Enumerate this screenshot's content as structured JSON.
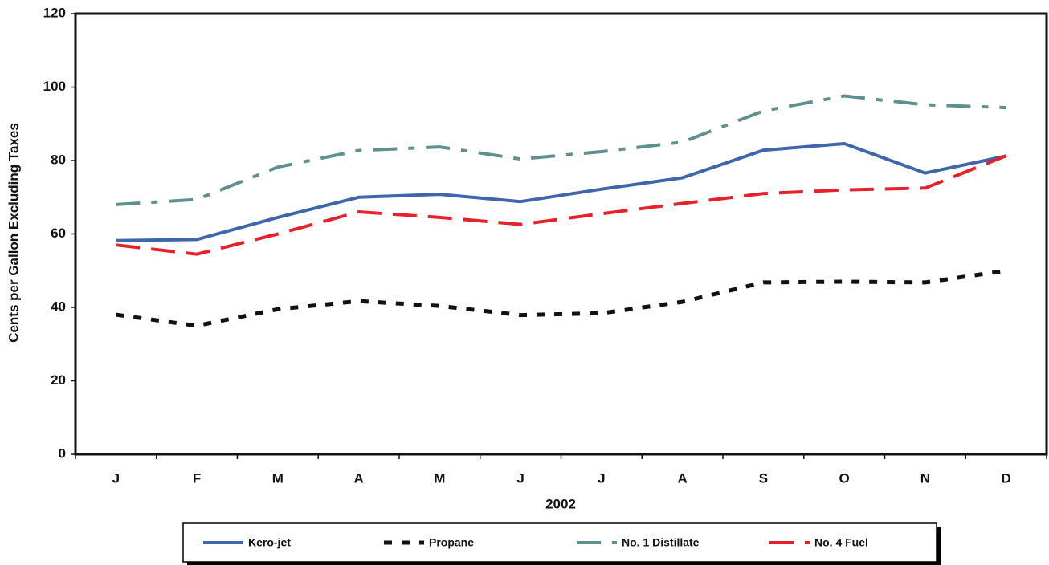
{
  "chart_data": {
    "type": "line",
    "y_label": "Cents per Gallon Excluding Taxes",
    "x_label": "2002",
    "categories": [
      "J",
      "F",
      "M",
      "A",
      "M",
      "J",
      "J",
      "A",
      "S",
      "O",
      "N",
      "D"
    ],
    "series": [
      {
        "name": "Kero-jet",
        "color": "#3f65ad",
        "style": "solid",
        "values": [
          58.2,
          58.5,
          64.5,
          70,
          70.8,
          68.8,
          72.2,
          75.3,
          82.8,
          84.6,
          76.6,
          81.2
        ]
      },
      {
        "name": "Propane",
        "color": "#111111",
        "style": "dotted",
        "values": [
          38,
          35,
          39.5,
          41.7,
          40.4,
          37.9,
          38.4,
          41.5,
          46.8,
          47,
          46.8,
          50
        ]
      },
      {
        "name": "No. 1 Distillate",
        "color": "#5f9090",
        "style": "dashdot",
        "values": [
          68,
          69.4,
          78.2,
          82.7,
          83.7,
          80.4,
          82.4,
          85,
          93.5,
          97.6,
          95.2,
          94.4
        ]
      },
      {
        "name": "No. 4 Fuel",
        "color": "#e8202a",
        "style": "dashed",
        "values": [
          57,
          54.5,
          60,
          66,
          64.5,
          62.6,
          65.5,
          68.3,
          71,
          72,
          72.5,
          81.3
        ]
      }
    ],
    "ylim": [
      0,
      120
    ],
    "yticks": [
      0,
      20,
      40,
      60,
      80,
      100,
      120
    ]
  }
}
